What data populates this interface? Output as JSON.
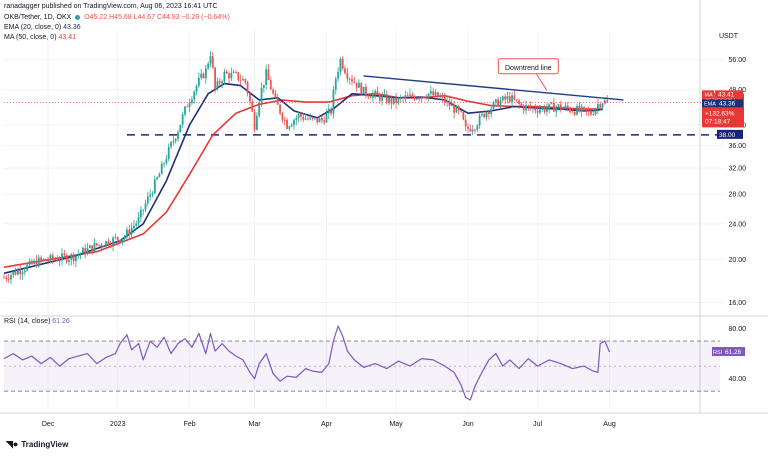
{
  "header": {
    "attribution": "ranadagger published on TradingView.com, Aug 06, 2023 16:41 UTC",
    "symbol_line": "OKB/Tether, 1D, OKX",
    "ohlc": "O45.22 H45.68 L44.67 C44.93 −0.29 (−0.64%)",
    "ema_label": "EMA (20, close, 0)",
    "ema_value": "43.36",
    "ma_label": "MA (50, close, 0)",
    "ma_value": "43.41",
    "rsi_label": "RSI (14, close)",
    "rsi_value": "61.26"
  },
  "brand": {
    "logo_text": "TradingView",
    "logo_icon": "tradingview-logo-icon"
  },
  "colors": {
    "up": "#26a69a",
    "down": "#ef5350",
    "ema": "#1c2f7a",
    "ma": "#e53935",
    "rsi": "#7e57c2",
    "trendline": "#1f3c88",
    "support": "#1a237e",
    "price_tag": "#e53935",
    "ma_tag": "#e53935",
    "ema_tag": "#1c2f7a"
  },
  "chart_data": {
    "type": "candlestick",
    "currency_label": "USDT",
    "y_ticks": [
      "56.00",
      "48.00",
      "40.00",
      "36.00",
      "32.00",
      "28.00",
      "24.00",
      "20.00",
      "16.00"
    ],
    "y_tick_values": [
      56,
      48,
      40,
      36,
      32,
      28,
      24,
      20,
      16
    ],
    "x_ticks": [
      "Dec",
      "2023",
      "Feb",
      "Mar",
      "Apr",
      "May",
      "Jun",
      "Jul",
      "Aug"
    ],
    "x_tick_days": [
      19,
      49,
      80,
      108,
      139,
      169,
      200,
      230,
      261
    ],
    "x_range_days": [
      0,
      300
    ],
    "price_ylim_log": [
      15,
      62
    ],
    "key_points": [
      [
        0,
        18.2
      ],
      [
        15,
        19.8
      ],
      [
        30,
        20.3
      ],
      [
        40,
        21.5
      ],
      [
        52,
        22.5
      ],
      [
        58,
        24.5
      ],
      [
        63,
        28
      ],
      [
        67,
        31
      ],
      [
        71,
        35
      ],
      [
        75,
        39
      ],
      [
        79,
        44.5
      ],
      [
        83,
        49
      ],
      [
        87,
        53
      ],
      [
        89,
        58
      ],
      [
        91,
        48
      ],
      [
        95,
        52
      ],
      [
        100,
        51.5
      ],
      [
        104,
        50
      ],
      [
        106,
        45
      ],
      [
        108,
        40
      ],
      [
        110,
        46
      ],
      [
        113,
        52
      ],
      [
        117,
        45
      ],
      [
        122,
        40
      ],
      [
        127,
        42
      ],
      [
        132,
        41
      ],
      [
        137,
        41
      ],
      [
        141,
        43
      ],
      [
        143,
        51
      ],
      [
        145,
        56
      ],
      [
        148,
        52
      ],
      [
        151,
        50
      ],
      [
        155,
        47.5
      ],
      [
        158,
        47
      ],
      [
        163,
        46
      ],
      [
        168,
        45
      ],
      [
        173,
        46
      ],
      [
        178,
        46.5
      ],
      [
        183,
        47
      ],
      [
        188,
        46
      ],
      [
        193,
        44
      ],
      [
        197,
        42
      ],
      [
        199,
        39
      ],
      [
        203,
        40
      ],
      [
        208,
        43
      ],
      [
        213,
        45
      ],
      [
        218,
        46
      ],
      [
        223,
        44
      ],
      [
        228,
        43.5
      ],
      [
        233,
        43.5
      ],
      [
        238,
        44
      ],
      [
        243,
        43.5
      ],
      [
        248,
        43
      ],
      [
        253,
        42.5
      ],
      [
        256,
        44.5
      ],
      [
        258,
        45.2
      ],
      [
        260,
        44.9
      ]
    ],
    "ema": [
      [
        0,
        18.6
      ],
      [
        30,
        20.3
      ],
      [
        50,
        22
      ],
      [
        60,
        24
      ],
      [
        70,
        30
      ],
      [
        80,
        40
      ],
      [
        88,
        47
      ],
      [
        95,
        49.5
      ],
      [
        102,
        49
      ],
      [
        110,
        45.5
      ],
      [
        118,
        46
      ],
      [
        125,
        43
      ],
      [
        135,
        41.5
      ],
      [
        142,
        43.5
      ],
      [
        150,
        47
      ],
      [
        160,
        46.5
      ],
      [
        170,
        46
      ],
      [
        180,
        46.2
      ],
      [
        190,
        45.5
      ],
      [
        200,
        42.5
      ],
      [
        210,
        43
      ],
      [
        220,
        44
      ],
      [
        230,
        43.6
      ],
      [
        240,
        43.4
      ],
      [
        250,
        43
      ],
      [
        255,
        43.1
      ],
      [
        258,
        43.36
      ]
    ],
    "ma": [
      [
        0,
        19.2
      ],
      [
        40,
        20.8
      ],
      [
        60,
        22.8
      ],
      [
        70,
        25.5
      ],
      [
        80,
        31
      ],
      [
        90,
        38
      ],
      [
        100,
        42.5
      ],
      [
        110,
        44.5
      ],
      [
        120,
        45.5
      ],
      [
        130,
        45
      ],
      [
        140,
        45
      ],
      [
        150,
        46.5
      ],
      [
        160,
        47
      ],
      [
        170,
        46
      ],
      [
        180,
        46
      ],
      [
        190,
        46.5
      ],
      [
        200,
        45.2
      ],
      [
        210,
        44.2
      ],
      [
        220,
        44
      ],
      [
        230,
        44
      ],
      [
        240,
        43.7
      ],
      [
        250,
        43.4
      ],
      [
        258,
        43.41
      ]
    ],
    "trendline": {
      "label": "Downtrend line",
      "start": [
        155,
        51.5
      ],
      "end": [
        267,
        45.5
      ]
    },
    "support": {
      "value": 38.0,
      "start_day": 53
    },
    "last_price": 44.93,
    "last_price_tag": [
      "OKBUSDT",
      "44.93",
      "+132.63%",
      "07:18:47"
    ],
    "ma_tag": [
      "MA",
      "43.41"
    ],
    "ema_tag": [
      "EMA",
      "43.36"
    ],
    "support_tag": "38.00",
    "rsi": {
      "ylim": [
        15,
        90
      ],
      "ticks": [
        "80.00",
        "40.00"
      ],
      "tick_values": [
        80,
        40
      ],
      "band": [
        70,
        30
      ],
      "midline": 50,
      "series": [
        [
          0,
          56
        ],
        [
          4,
          60
        ],
        [
          8,
          55
        ],
        [
          12,
          58
        ],
        [
          16,
          52
        ],
        [
          20,
          57
        ],
        [
          24,
          50
        ],
        [
          28,
          56
        ],
        [
          32,
          58
        ],
        [
          36,
          60
        ],
        [
          40,
          52
        ],
        [
          44,
          57
        ],
        [
          48,
          60
        ],
        [
          50,
          68
        ],
        [
          53,
          75
        ],
        [
          55,
          63
        ],
        [
          58,
          68
        ],
        [
          60,
          55
        ],
        [
          63,
          70
        ],
        [
          66,
          65
        ],
        [
          69,
          73
        ],
        [
          72,
          60
        ],
        [
          75,
          68
        ],
        [
          78,
          72
        ],
        [
          81,
          65
        ],
        [
          84,
          76
        ],
        [
          87,
          60
        ],
        [
          89,
          76
        ],
        [
          91,
          62
        ],
        [
          94,
          68
        ],
        [
          97,
          62
        ],
        [
          100,
          58
        ],
        [
          103,
          55
        ],
        [
          106,
          45
        ],
        [
          108,
          40
        ],
        [
          110,
          52
        ],
        [
          113,
          60
        ],
        [
          116,
          44
        ],
        [
          119,
          38
        ],
        [
          122,
          42
        ],
        [
          126,
          41
        ],
        [
          130,
          48
        ],
        [
          133,
          46
        ],
        [
          137,
          45
        ],
        [
          140,
          52
        ],
        [
          142,
          70
        ],
        [
          144,
          82
        ],
        [
          146,
          74
        ],
        [
          148,
          62
        ],
        [
          151,
          55
        ],
        [
          155,
          49
        ],
        [
          160,
          52
        ],
        [
          165,
          48
        ],
        [
          170,
          54
        ],
        [
          175,
          50
        ],
        [
          180,
          56
        ],
        [
          185,
          55
        ],
        [
          190,
          50
        ],
        [
          194,
          45
        ],
        [
          197,
          35
        ],
        [
          199,
          25
        ],
        [
          201,
          23
        ],
        [
          203,
          34
        ],
        [
          206,
          45
        ],
        [
          209,
          55
        ],
        [
          212,
          60
        ],
        [
          215,
          50
        ],
        [
          218,
          55
        ],
        [
          222,
          48
        ],
        [
          226,
          56
        ],
        [
          230,
          50
        ],
        [
          235,
          55
        ],
        [
          240,
          52
        ],
        [
          245,
          48
        ],
        [
          250,
          50
        ],
        [
          254,
          46
        ],
        [
          256,
          45
        ],
        [
          257,
          68
        ],
        [
          259,
          70
        ],
        [
          261,
          61.26
        ]
      ]
    }
  }
}
